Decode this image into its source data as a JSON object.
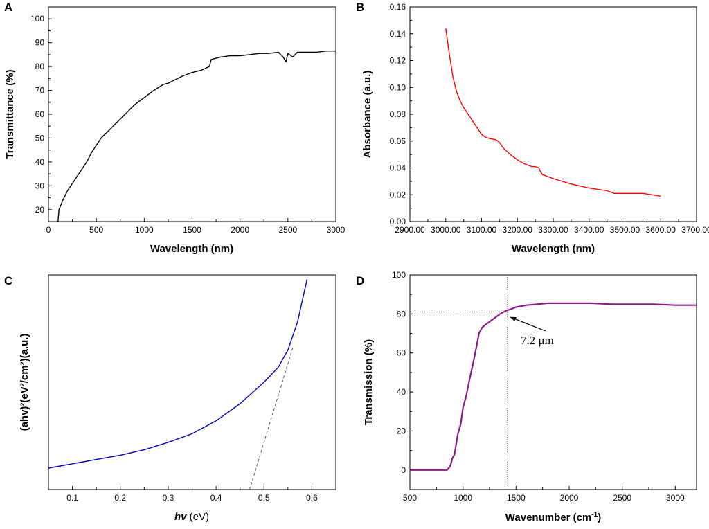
{
  "figure": {
    "colors": {
      "A": "#000000",
      "B": "#ff0000",
      "C": "#0000c0",
      "C_fit": "#555555",
      "D": "#8b1a8b",
      "guide": "#666666"
    }
  },
  "chart_data": [
    {
      "id": "A",
      "type": "line",
      "panel_label": "A",
      "title": "",
      "xlabel": "Wavelength (nm)",
      "ylabel": "Transmittance (%)",
      "xlim": [
        0,
        3000
      ],
      "ylim": [
        15,
        105
      ],
      "xticks": [
        0,
        500,
        1000,
        1500,
        2000,
        2500,
        3000
      ],
      "yticks": [
        20,
        30,
        40,
        50,
        60,
        70,
        80,
        90,
        100
      ],
      "series": [
        {
          "name": "Transmittance",
          "x": [
            100,
            110,
            150,
            200,
            250,
            300,
            350,
            400,
            450,
            500,
            550,
            600,
            650,
            700,
            750,
            800,
            850,
            900,
            1000,
            1100,
            1200,
            1250,
            1300,
            1400,
            1500,
            1600,
            1680,
            1700,
            1750,
            1800,
            1900,
            2000,
            2100,
            2200,
            2300,
            2400,
            2450,
            2480,
            2500,
            2550,
            2600,
            2700,
            2800,
            2900,
            3000
          ],
          "y": [
            14,
            20,
            24,
            28,
            31,
            34,
            37,
            40,
            44,
            47,
            50,
            52,
            54,
            56,
            58,
            60,
            62,
            64,
            67,
            70,
            72.5,
            73,
            74,
            76,
            77.5,
            78.5,
            80,
            83,
            83.5,
            84,
            84.5,
            84.5,
            85,
            85.5,
            85.5,
            86,
            84,
            82,
            85.5,
            84,
            86,
            86,
            86,
            86.5,
            86.5
          ]
        }
      ]
    },
    {
      "id": "B",
      "type": "line",
      "panel_label": "B",
      "title": "",
      "xlabel": "Wavelength (nm)",
      "ylabel": "Absorbance (a.u.)",
      "xlim": [
        2900,
        3700
      ],
      "ylim": [
        0,
        0.16
      ],
      "xticks": [
        2900,
        3000,
        3100,
        3200,
        3300,
        3400,
        3500,
        3600,
        3700
      ],
      "yticks": [
        0.0,
        0.02,
        0.04,
        0.06,
        0.08,
        0.1,
        0.12,
        0.14,
        0.16
      ],
      "series": [
        {
          "name": "Absorbance",
          "x": [
            3000,
            3010,
            3020,
            3030,
            3040,
            3050,
            3060,
            3070,
            3080,
            3090,
            3100,
            3110,
            3120,
            3140,
            3150,
            3160,
            3180,
            3200,
            3220,
            3240,
            3250,
            3260,
            3265,
            3270,
            3300,
            3350,
            3400,
            3450,
            3470,
            3500,
            3520,
            3550,
            3600
          ],
          "y": [
            0.144,
            0.125,
            0.108,
            0.097,
            0.09,
            0.085,
            0.081,
            0.077,
            0.073,
            0.069,
            0.065,
            0.063,
            0.062,
            0.061,
            0.059,
            0.055,
            0.05,
            0.046,
            0.043,
            0.041,
            0.041,
            0.04,
            0.037,
            0.035,
            0.032,
            0.028,
            0.025,
            0.023,
            0.021,
            0.021,
            0.021,
            0.021,
            0.019
          ]
        }
      ]
    },
    {
      "id": "C",
      "type": "line",
      "panel_label": "C",
      "title": "",
      "xlabel_main": "hv",
      "xlabel_unit": " (eV)",
      "ylabel": "(ahv)²(eV²/cm²)(a.u.)",
      "xlim": [
        0.05,
        0.65
      ],
      "ylim": [
        0,
        1
      ],
      "xticks": [
        0.1,
        0.2,
        0.3,
        0.4,
        0.5,
        0.6
      ],
      "yticks": [],
      "series": [
        {
          "name": "(ahv)^2",
          "x": [
            0.05,
            0.1,
            0.15,
            0.2,
            0.25,
            0.3,
            0.35,
            0.4,
            0.45,
            0.5,
            0.53,
            0.55,
            0.57,
            0.58,
            0.59
          ],
          "y": [
            0.1,
            0.12,
            0.14,
            0.16,
            0.185,
            0.22,
            0.26,
            0.32,
            0.4,
            0.5,
            0.57,
            0.65,
            0.78,
            0.88,
            0.98
          ]
        },
        {
          "name": "linear fit",
          "x": [
            0.47,
            0.56
          ],
          "y": [
            0.0,
            0.66
          ]
        }
      ]
    },
    {
      "id": "D",
      "type": "line",
      "panel_label": "D",
      "title": "",
      "xlabel_main": "Wavenumber (cm",
      "xlabel_sup": "-1",
      "xlabel_end": ")",
      "ylabel": "Transmission (%)",
      "xlim": [
        500,
        3200
      ],
      "ylim": [
        -10,
        100
      ],
      "xticks": [
        500,
        1000,
        1500,
        2000,
        2500,
        3000
      ],
      "yticks": [
        0,
        20,
        40,
        60,
        80,
        100
      ],
      "annotation": "7.2 μm",
      "marker": {
        "x": 1418,
        "y": 81
      },
      "series": [
        {
          "name": "Transmission",
          "x": [
            500,
            700,
            850,
            880,
            900,
            920,
            950,
            980,
            1000,
            1030,
            1060,
            1100,
            1130,
            1150,
            1180,
            1200,
            1250,
            1300,
            1350,
            1400,
            1450,
            1500,
            1600,
            1700,
            1800,
            1900,
            2000,
            2200,
            2400,
            2600,
            2800,
            3000,
            3200
          ],
          "y": [
            0,
            0,
            0,
            2,
            6,
            8,
            18,
            24,
            32,
            38,
            46,
            56,
            64,
            70,
            73,
            74,
            76,
            78,
            80,
            81.5,
            82.5,
            83.5,
            84.5,
            85,
            85.5,
            85.5,
            85.5,
            85.5,
            85,
            85,
            85,
            84.5,
            84.5
          ]
        }
      ]
    }
  ]
}
